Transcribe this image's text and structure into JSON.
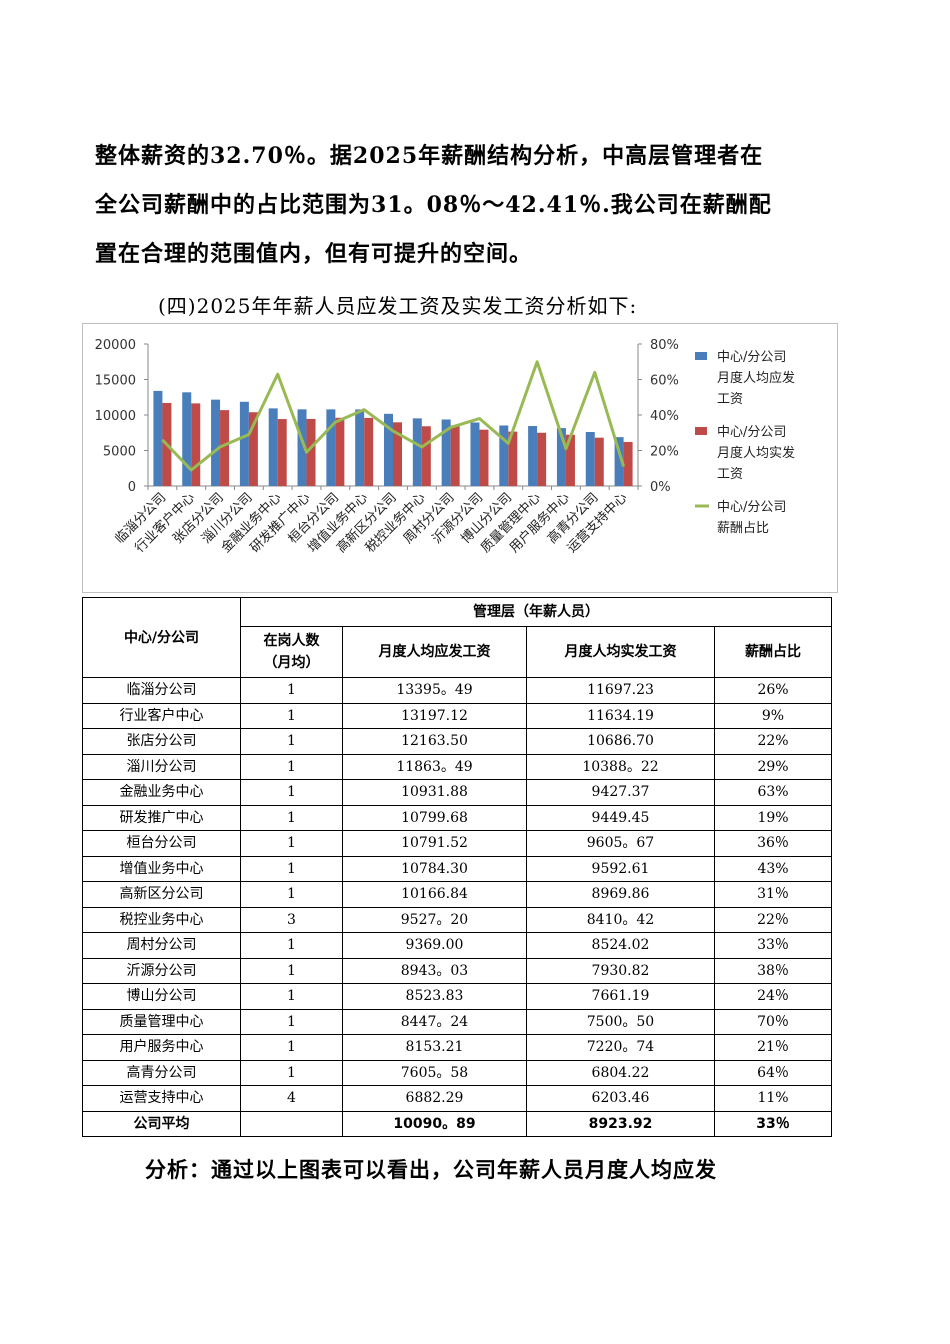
{
  "paragraph_lines": [
    "整体薪资的32.70％。据2025年薪酬结构分析，中高层管理者在",
    "全公司薪酬中的占比范围为31。08％～42.41％.我公司在薪酬配",
    "置在合理的范围值内，但有可提升的空间。"
  ],
  "section_heading": "(四)2025年年薪人员应发工资及实发工资分析如下:",
  "chart_data": {
    "type": "bar",
    "categories": [
      "临淄分公司",
      "行业客户中心",
      "张店分公司",
      "淄川分公司",
      "金融业务中心",
      "研发推广中心",
      "桓台分公司",
      "增值业务中心",
      "高新区分公司",
      "税控业务中心",
      "周村分公司",
      "沂源分公司",
      "博山分公司",
      "质量管理中心",
      "用户服务中心",
      "高青分公司",
      "运营支持中心"
    ],
    "series": [
      {
        "name": "中心/分公司月度人均应发工资",
        "type": "bar",
        "axis": "left",
        "color": "#4a7ebb",
        "values": [
          13395.49,
          13197.12,
          12163.5,
          11863.49,
          10931.88,
          10799.68,
          10791.52,
          10784.3,
          10166.84,
          9527.2,
          9369.0,
          8943.03,
          8523.83,
          8447.24,
          8153.21,
          7605.58,
          6882.29
        ]
      },
      {
        "name": "中心/分公司月度人均实发工资",
        "type": "bar",
        "axis": "left",
        "color": "#be4b48",
        "values": [
          11697.23,
          11634.19,
          10686.7,
          10388.22,
          9427.37,
          9449.45,
          9605.67,
          9592.61,
          8969.86,
          8410.42,
          8524.02,
          7930.82,
          7661.19,
          7500.5,
          7220.74,
          6804.22,
          6203.46
        ]
      },
      {
        "name": "中心/分公司薪酬占比",
        "type": "line",
        "axis": "right",
        "color": "#98b954",
        "values": [
          26,
          9,
          22,
          29,
          63,
          19,
          36,
          43,
          31,
          22,
          33,
          38,
          24,
          70,
          21,
          64,
          11
        ]
      }
    ],
    "legend_labels": [
      [
        "中心/分公司",
        "月度人均应发",
        "工资"
      ],
      [
        "中心/分公司",
        "月度人均实发",
        "工资"
      ],
      [
        "中心/分公司",
        "薪酬占比"
      ]
    ],
    "y_left_ticks": [
      "0",
      "5000",
      "10000",
      "15000",
      "20000"
    ],
    "y_right_ticks": [
      "0%",
      "20%",
      "40%",
      "60%",
      "80%"
    ],
    "ylim": [
      0,
      20000
    ],
    "y2lim": [
      0,
      80
    ],
    "legend_position": "right",
    "grid": false
  },
  "table": {
    "col_header_unit": "中心/分公司",
    "group_header": "管理层（年薪人员）",
    "sub_headers": [
      "在岗人数（月均）",
      "月度人均应发工资",
      "月度人均实发工资",
      "薪酬占比"
    ],
    "rows": [
      [
        "临淄分公司",
        "1",
        "13395。49",
        "11697.23",
        "26%"
      ],
      [
        "行业客户中心",
        "1",
        "13197.12",
        "11634.19",
        "9%"
      ],
      [
        "张店分公司",
        "1",
        "12163.50",
        "10686.70",
        "22%"
      ],
      [
        "淄川分公司",
        "1",
        "11863。49",
        "10388。22",
        "29%"
      ],
      [
        "金融业务中心",
        "1",
        "10931.88",
        "9427.37",
        "63%"
      ],
      [
        "研发推广中心",
        "1",
        "10799.68",
        "9449.45",
        "19%"
      ],
      [
        "桓台分公司",
        "1",
        "10791.52",
        "9605。67",
        "36％"
      ],
      [
        "增值业务中心",
        "1",
        "10784.30",
        "9592.61",
        "43%"
      ],
      [
        "高新区分公司",
        "1",
        "10166.84",
        "8969.86",
        "31％"
      ],
      [
        "税控业务中心",
        "3",
        "9527。20",
        "8410。42",
        "22％"
      ],
      [
        "周村分公司",
        "1",
        "9369.00",
        "8524.02",
        "33％"
      ],
      [
        "沂源分公司",
        "1",
        "8943。03",
        "7930.82",
        "38％"
      ],
      [
        "博山分公司",
        "1",
        "8523.83",
        "7661.19",
        "24％"
      ],
      [
        "质量管理中心",
        "1",
        "8447。24",
        "7500。50",
        "70％"
      ],
      [
        "用户服务中心",
        "1",
        "8153.21",
        "7220。74",
        "21％"
      ],
      [
        "高青分公司",
        "1",
        "7605。58",
        "6804.22",
        "64％"
      ],
      [
        "运营支持中心",
        "4",
        "6882.29",
        "6203.46",
        "11%"
      ]
    ],
    "total_row": [
      "公司平均",
      "",
      "10090。89",
      "8923.92",
      "33％"
    ]
  },
  "analysis_line": "分析：通过以上图表可以看出，公司年薪人员月度人均应发"
}
